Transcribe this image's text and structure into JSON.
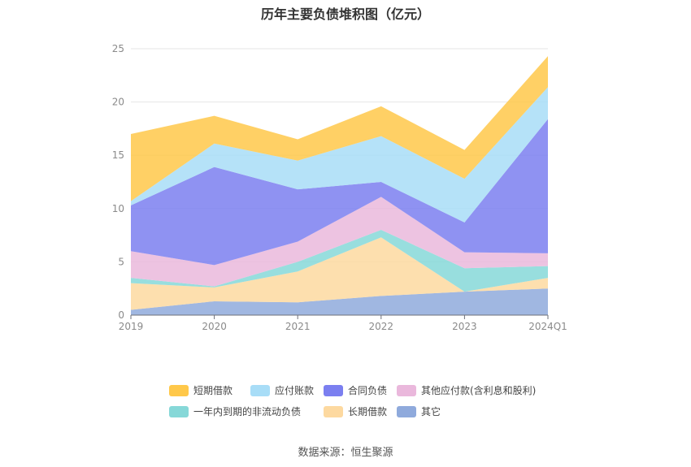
{
  "title": "历年主要负债堆积图（亿元）",
  "source": "数据来源：恒生聚源",
  "chart_data": {
    "type": "area",
    "stacked": true,
    "categories": [
      "2019",
      "2020",
      "2021",
      "2022",
      "2023",
      "2024Q1"
    ],
    "ylim": [
      0,
      25
    ],
    "yticks": [
      0,
      5,
      10,
      15,
      20,
      25
    ],
    "grid": true,
    "legend_position": "bottom",
    "series": [
      {
        "name": "其它",
        "color": "#8faadc",
        "values": [
          0.5,
          1.3,
          1.2,
          1.8,
          2.2,
          2.5
        ]
      },
      {
        "name": "长期借款",
        "color": "#fdd9a0",
        "values": [
          2.5,
          1.3,
          2.9,
          5.5,
          0,
          1.0
        ]
      },
      {
        "name": "一年内到期的非流动负债",
        "color": "#86d8d8",
        "values": [
          0.5,
          0.1,
          0.9,
          0.7,
          2.2,
          1.1
        ]
      },
      {
        "name": "其他应付款(含利息和股利)",
        "color": "#eab8dc",
        "values": [
          2.5,
          2.0,
          1.9,
          3.1,
          1.5,
          1.2
        ]
      },
      {
        "name": "合同负债",
        "color": "#7b7ff0",
        "values": [
          4.3,
          9.2,
          4.9,
          1.4,
          2.8,
          12.6
        ]
      },
      {
        "name": "应付账款",
        "color": "#a8ddf7",
        "values": [
          0.4,
          2.2,
          2.7,
          4.3,
          4.1,
          3.0
        ]
      },
      {
        "name": "短期借款",
        "color": "#ffc84a",
        "values": [
          6.3,
          2.6,
          2.0,
          2.8,
          2.7,
          2.9
        ]
      }
    ],
    "legend_order": [
      "短期借款",
      "应付账款",
      "合同负债",
      "其他应付款(含利息和股利)",
      "一年内到期的非流动负债",
      "长期借款",
      "其它"
    ]
  }
}
